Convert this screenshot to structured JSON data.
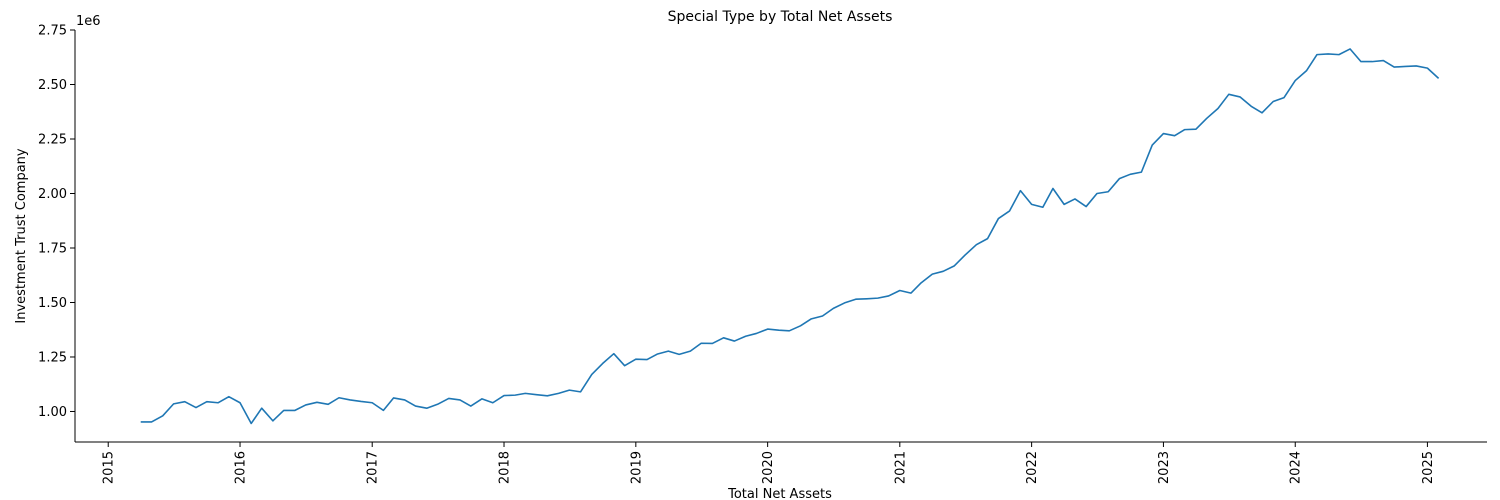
{
  "chart_data": {
    "type": "line",
    "title": "Special Type by Total Net Assets",
    "xlabel": "Total Net Assets",
    "ylabel": "Investment Trust Company",
    "y_offset_label": "1e6",
    "y_scale": 1000000,
    "xlim": [
      "2014-10-01",
      "2025-06-15"
    ],
    "ylim": [
      860000,
      2750000
    ],
    "x_ticks": [
      "2015",
      "2016",
      "2017",
      "2018",
      "2019",
      "2020",
      "2021",
      "2022",
      "2023",
      "2024",
      "2025"
    ],
    "y_ticks": [
      "1.00",
      "1.25",
      "1.50",
      "1.75",
      "2.00",
      "2.25",
      "2.50",
      "2.75"
    ],
    "grid": false,
    "line_color": "#1f77b4",
    "series": [
      {
        "x": [
          "2015-04",
          "2015-05",
          "2015-06",
          "2015-07",
          "2015-08",
          "2015-09",
          "2015-10",
          "2015-11",
          "2015-12",
          "2016-01",
          "2016-02",
          "2016-03",
          "2016-04",
          "2016-05",
          "2016-06",
          "2016-07",
          "2016-08",
          "2016-09",
          "2016-10",
          "2016-11",
          "2016-12",
          "2017-01",
          "2017-02",
          "2017-03",
          "2017-04",
          "2017-05",
          "2017-06",
          "2017-07",
          "2017-08",
          "2017-09",
          "2017-10",
          "2017-11",
          "2017-12",
          "2018-01",
          "2018-02",
          "2018-03",
          "2018-04",
          "2018-05",
          "2018-06",
          "2018-07",
          "2018-08",
          "2018-09",
          "2018-10",
          "2018-11",
          "2018-12",
          "2019-01",
          "2019-02",
          "2019-03",
          "2019-04",
          "2019-05",
          "2019-06",
          "2019-07",
          "2019-08",
          "2019-09",
          "2019-10",
          "2019-11",
          "2019-12",
          "2020-01",
          "2020-02",
          "2020-03",
          "2020-04",
          "2020-05",
          "2020-06",
          "2020-07",
          "2020-08",
          "2020-09",
          "2020-10",
          "2020-11",
          "2020-12",
          "2021-01",
          "2021-02",
          "2021-03",
          "2021-04",
          "2021-05",
          "2021-06",
          "2021-07",
          "2021-08",
          "2021-09",
          "2021-10",
          "2021-11",
          "2021-12",
          "2022-01",
          "2022-02",
          "2022-03",
          "2022-04",
          "2022-05",
          "2022-06",
          "2022-07",
          "2022-08",
          "2022-09",
          "2022-10",
          "2022-11",
          "2022-12",
          "2023-01",
          "2023-02",
          "2023-03",
          "2023-04",
          "2023-05",
          "2023-06",
          "2023-07",
          "2023-08",
          "2023-09",
          "2023-10",
          "2023-11",
          "2023-12",
          "2024-01",
          "2024-02",
          "2024-03",
          "2024-04",
          "2024-05",
          "2024-06",
          "2024-07",
          "2024-08",
          "2024-09",
          "2024-10",
          "2024-11",
          "2024-12",
          "2025-01",
          "2025-02"
        ],
        "y": [
          952000,
          952000,
          980000,
          1035000,
          1045000,
          1018000,
          1045000,
          1040000,
          1068000,
          1040000,
          945000,
          1015000,
          957000,
          1005000,
          1005000,
          1030000,
          1042000,
          1033000,
          1063000,
          1053000,
          1046000,
          1040000,
          1005000,
          1062000,
          1053000,
          1025000,
          1015000,
          1033000,
          1060000,
          1053000,
          1025000,
          1058000,
          1040000,
          1073000,
          1075000,
          1083000,
          1077000,
          1072000,
          1083000,
          1098000,
          1090000,
          1170000,
          1220000,
          1265000,
          1210000,
          1240000,
          1238000,
          1263000,
          1277000,
          1262000,
          1277000,
          1313000,
          1312000,
          1338000,
          1323000,
          1345000,
          1358000,
          1378000,
          1373000,
          1370000,
          1393000,
          1425000,
          1438000,
          1473000,
          1498000,
          1515000,
          1517000,
          1520000,
          1530000,
          1555000,
          1543000,
          1590000,
          1630000,
          1643000,
          1668000,
          1718000,
          1765000,
          1793000,
          1885000,
          1920000,
          2013000,
          1950000,
          1937000,
          2023000,
          1950000,
          1975000,
          1940000,
          2000000,
          2008000,
          2068000,
          2088000,
          2098000,
          2222000,
          2275000,
          2265000,
          2293000,
          2295000,
          2345000,
          2390000,
          2455000,
          2443000,
          2400000,
          2370000,
          2422000,
          2440000,
          2518000,
          2563000,
          2637000,
          2640000,
          2637000,
          2663000,
          2605000,
          2605000,
          2610000,
          2580000,
          2583000,
          2585000,
          2575000,
          2528000
        ]
      }
    ]
  }
}
